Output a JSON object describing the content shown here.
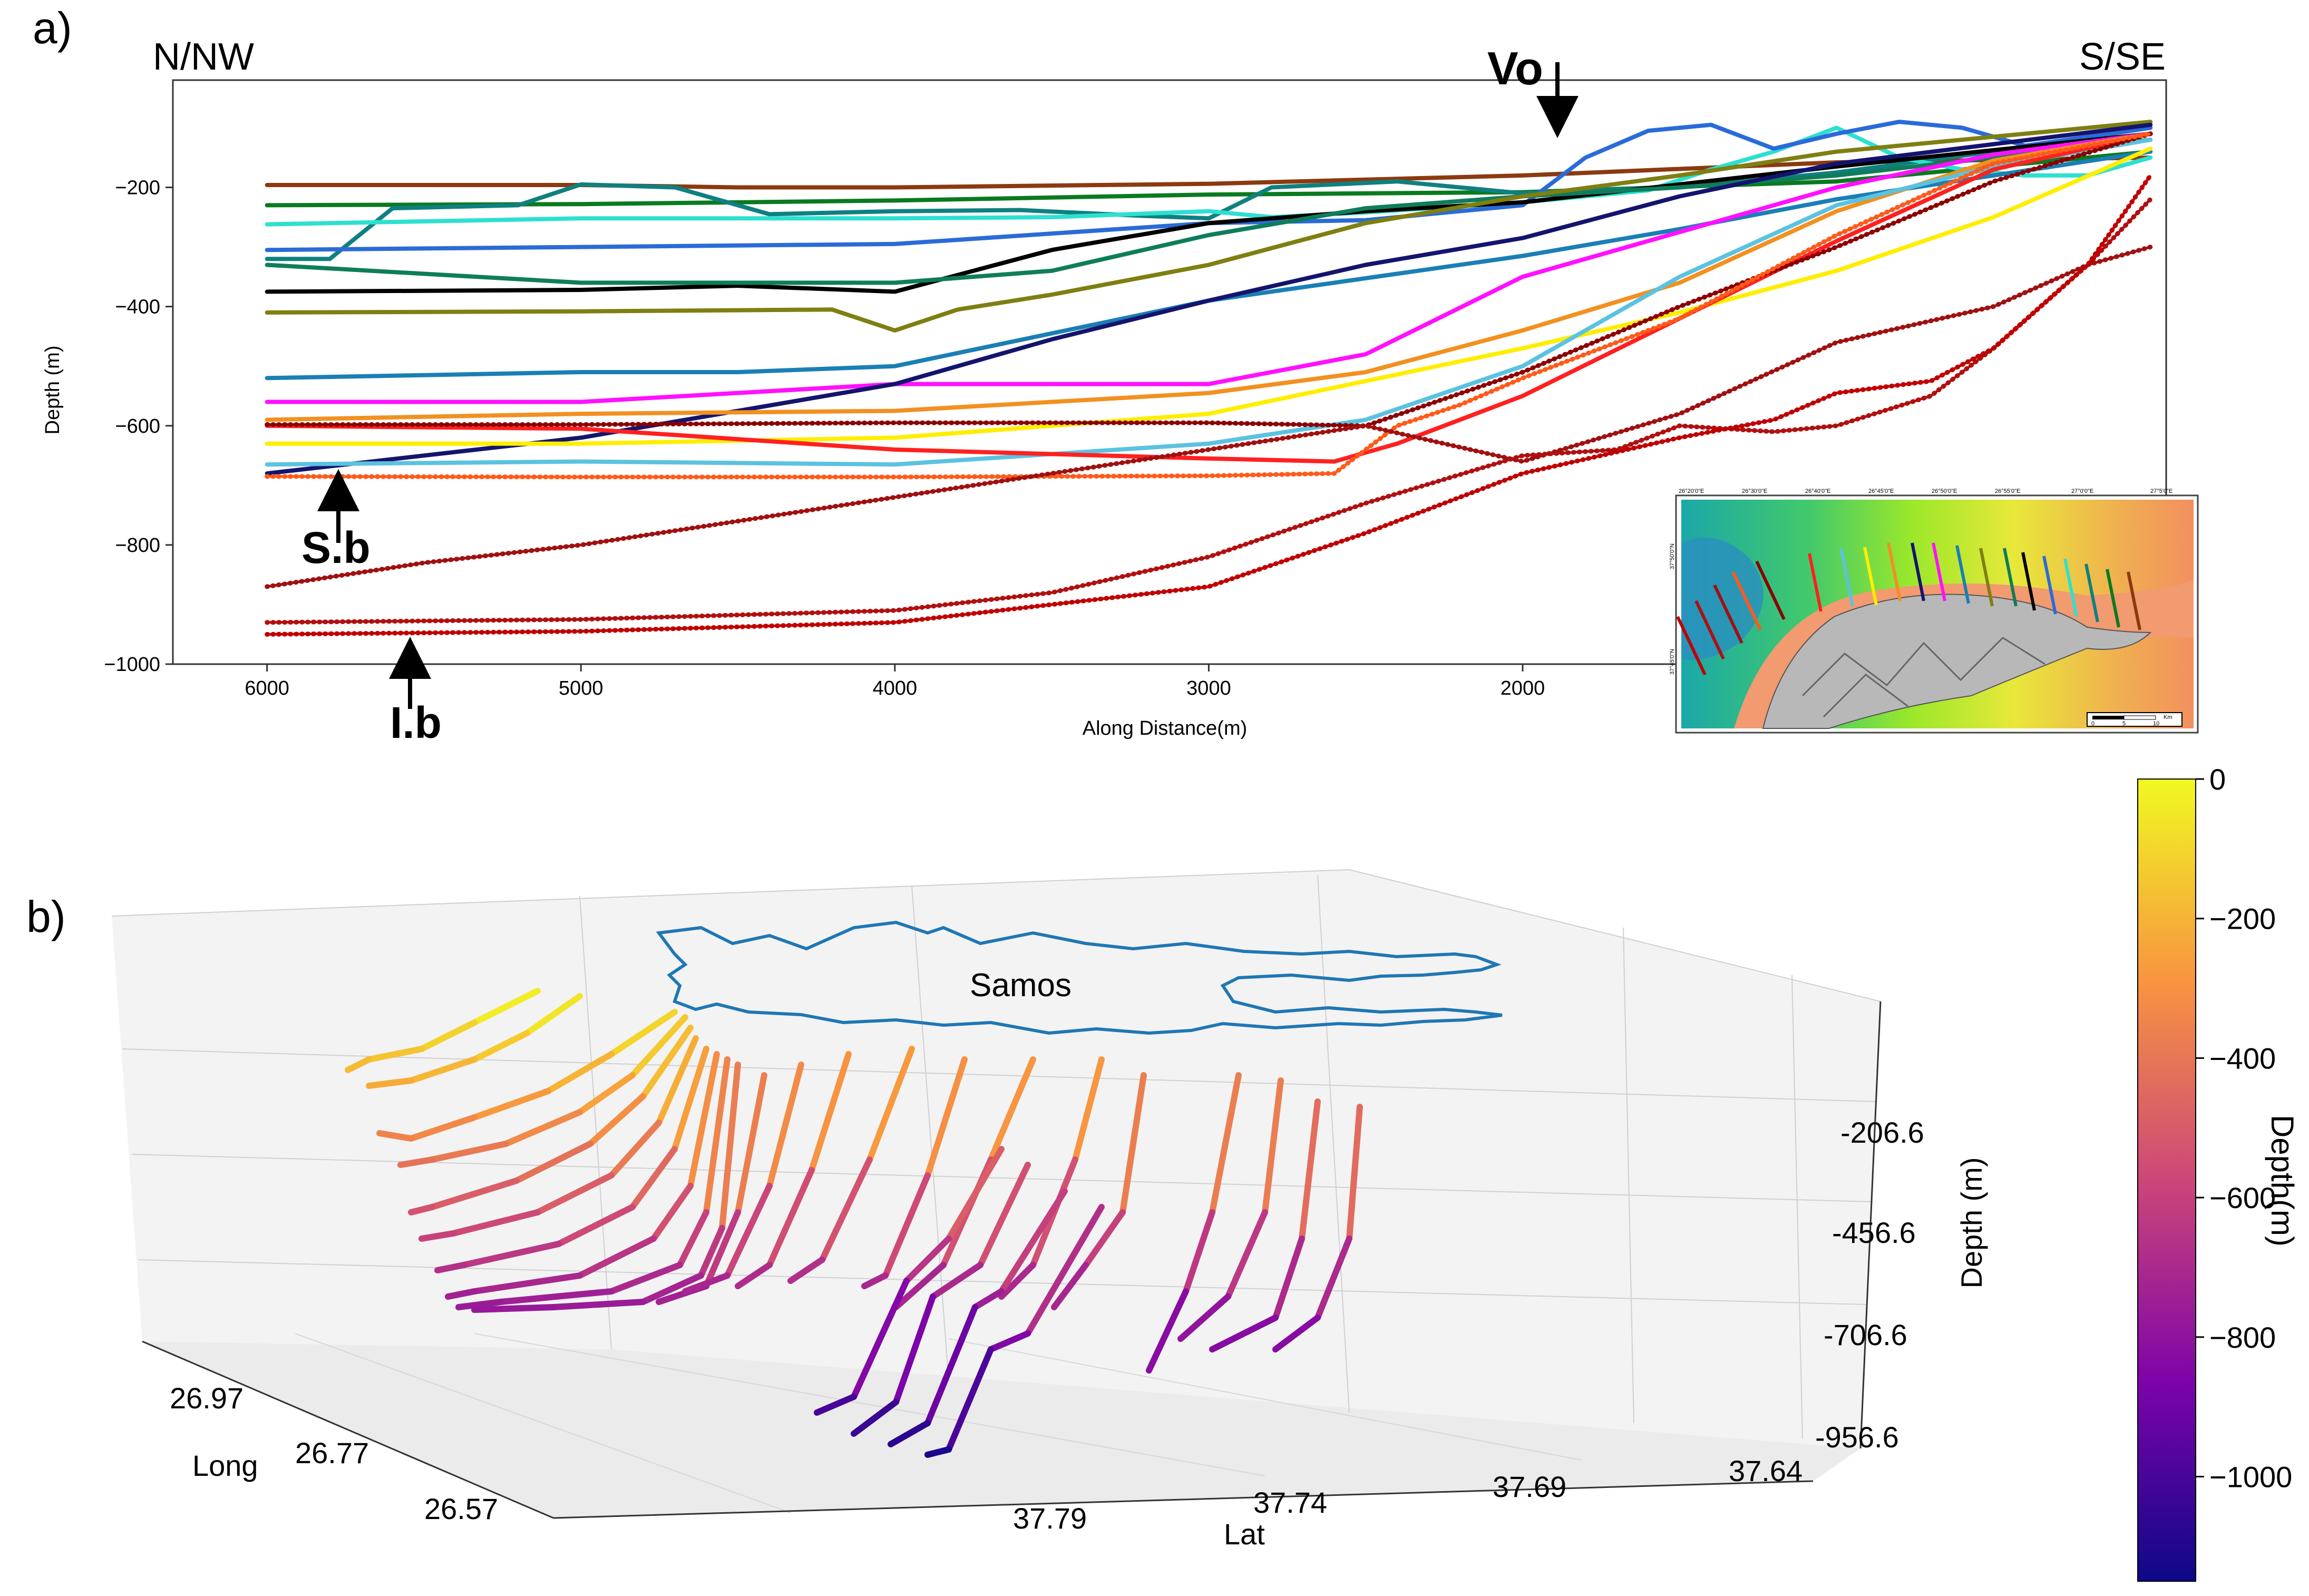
{
  "panel_a": {
    "panel_label": "a)",
    "left_tag": "N/NW",
    "right_tag": "S/SE",
    "ylabel": "Depth (m)",
    "xlabel": "Along Distance(m)",
    "annotations": {
      "vo": "Vo",
      "sb": "S.b",
      "ib": "I.b"
    },
    "inset": {
      "top_ticks": [
        "26°20'0\"E",
        "26°30'0\"E",
        "26°40'0\"E",
        "26°45'0\"E",
        "26°50'0\"E",
        "26°55'0\"E",
        "27°0'0\"E",
        "27°5'0\"E"
      ],
      "left_ticks": [
        "37°50'0\"N",
        "37°45'0\"N"
      ],
      "scale_label": "Km",
      "scale_ticks": [
        "0",
        "5",
        "10"
      ]
    }
  },
  "panel_b": {
    "panel_label": "b)",
    "island_label": "Samos",
    "long_label": "Long",
    "lat_label": "Lat",
    "depth_label": "Depth (m)",
    "long_ticks": [
      "26.97",
      "26.77",
      "26.57"
    ],
    "lat_ticks": [
      "37.79",
      "37.74",
      "37.69",
      "37.64"
    ],
    "depth_ticks": [
      "-206.6",
      "-456.6",
      "-706.6",
      "-956.6"
    ],
    "colorbar": {
      "label": "Depth(m)",
      "ticks": [
        "0",
        "-200",
        "-400",
        "-600",
        "-800",
        "-1000"
      ],
      "colors": [
        "#0d0887",
        "#7e03a8",
        "#cc4778",
        "#f89540",
        "#f0f921"
      ]
    }
  },
  "chart_data": [
    {
      "type": "line",
      "title": "",
      "xlabel": "Along Distance(m)",
      "ylabel": "Depth (m)",
      "xlim": [
        6300,
        -50
      ],
      "ylim": [
        -1000,
        -20
      ],
      "xticks": [
        6000,
        5000,
        4000,
        3000,
        2000
      ],
      "yticks": [
        -200,
        -400,
        -600,
        -800,
        -1000
      ],
      "series": [
        {
          "name": "profile-brown-top",
          "color": "#8b3a0f",
          "x": [
            6000,
            5000,
            4500,
            4000,
            3000,
            2000,
            1000,
            0
          ],
          "y": [
            -196,
            -196,
            -200,
            -200,
            -194,
            -180,
            -158,
            -150
          ]
        },
        {
          "name": "profile-green-1",
          "color": "#0a7a1f",
          "x": [
            6000,
            5000,
            4000,
            3000,
            2000,
            1000,
            0
          ],
          "y": [
            -230,
            -228,
            -222,
            -212,
            -208,
            -190,
            -140
          ]
        },
        {
          "name": "profile-teal",
          "color": "#0f8080",
          "x": [
            6000,
            5800,
            5600,
            5200,
            5000,
            4700,
            4400,
            4000,
            3600,
            3200,
            3000,
            2800,
            2400,
            2000,
            1800,
            1500,
            1000,
            500,
            0
          ],
          "y": [
            -320,
            -320,
            -235,
            -230,
            -195,
            -200,
            -245,
            -240,
            -238,
            -248,
            -252,
            -200,
            -190,
            -210,
            -205,
            -200,
            -175,
            -140,
            -100
          ]
        },
        {
          "name": "profile-cyan",
          "color": "#2de0d0",
          "x": [
            6000,
            5000,
            4000,
            3500,
            3000,
            2800,
            2500,
            2000,
            1600,
            1400,
            1200,
            1000,
            800,
            600,
            400,
            200,
            0
          ],
          "y": [
            -262,
            -252,
            -252,
            -250,
            -240,
            -250,
            -242,
            -225,
            -205,
            -170,
            -140,
            -100,
            -150,
            -170,
            -180,
            -180,
            -150
          ]
        },
        {
          "name": "profile-blue",
          "color": "#2a6bd8",
          "x": [
            6000,
            5000,
            4000,
            3000,
            2500,
            2200,
            2000,
            1800,
            1600,
            1400,
            1200,
            1000,
            800,
            600,
            400,
            200,
            0
          ],
          "y": [
            -305,
            -300,
            -295,
            -260,
            -255,
            -240,
            -230,
            -150,
            -105,
            -95,
            -135,
            -110,
            -90,
            -100,
            -130,
            -115,
            -100
          ]
        },
        {
          "name": "profile-black",
          "color": "#000000",
          "x": [
            6000,
            5000,
            4500,
            4000,
            3500,
            3000,
            2500,
            2000,
            1500,
            1000,
            0
          ],
          "y": [
            -375,
            -372,
            -365,
            -375,
            -305,
            -260,
            -240,
            -225,
            -195,
            -165,
            -110
          ]
        },
        {
          "name": "profile-green-2",
          "color": "#0f7d5a",
          "x": [
            6000,
            5000,
            4000,
            3500,
            3000,
            2500,
            2000,
            1500,
            1000,
            0
          ],
          "y": [
            -330,
            -360,
            -360,
            -340,
            -280,
            -235,
            -215,
            -200,
            -180,
            -120
          ]
        },
        {
          "name": "profile-olive",
          "color": "#7f7f12",
          "x": [
            6000,
            5000,
            4200,
            4000,
            3800,
            3500,
            3000,
            2500,
            2000,
            1500,
            1000,
            0
          ],
          "y": [
            -410,
            -408,
            -405,
            -440,
            -405,
            -380,
            -330,
            -260,
            -215,
            -180,
            -140,
            -90
          ]
        },
        {
          "name": "profile-steelblue",
          "color": "#1a7fb5",
          "x": [
            6000,
            5500,
            5000,
            4500,
            4000,
            3000,
            2000,
            1500,
            1000,
            0
          ],
          "y": [
            -520,
            -515,
            -510,
            -510,
            -500,
            -390,
            -315,
            -270,
            -220,
            -140
          ]
        },
        {
          "name": "profile-magenta",
          "color": "#ff10ff",
          "x": [
            6000,
            5000,
            4000,
            3000,
            2500,
            2000,
            1500,
            1000,
            500,
            0
          ],
          "y": [
            -560,
            -560,
            -530,
            -530,
            -480,
            -350,
            -275,
            -200,
            -145,
            -110
          ]
        },
        {
          "name": "profile-navy",
          "color": "#14146e",
          "x": [
            6000,
            5000,
            4000,
            3500,
            3000,
            2500,
            2000,
            1500,
            1000,
            0
          ],
          "y": [
            -680,
            -620,
            -530,
            -455,
            -390,
            -330,
            -285,
            -215,
            -160,
            -95
          ]
        },
        {
          "name": "profile-orange",
          "color": "#f29020",
          "x": [
            6000,
            5000,
            4000,
            3000,
            2500,
            2000,
            1500,
            1000,
            500,
            0
          ],
          "y": [
            -590,
            -580,
            -575,
            -545,
            -510,
            -440,
            -360,
            -240,
            -155,
            -110
          ]
        },
        {
          "name": "profile-yellow",
          "color": "#ffee00",
          "x": [
            6000,
            5000,
            4000,
            3000,
            2000,
            1500,
            1000,
            500,
            0
          ],
          "y": [
            -630,
            -630,
            -620,
            -580,
            -470,
            -410,
            -340,
            -250,
            -135
          ]
        },
        {
          "name": "profile-skyblue",
          "color": "#5bc2e0",
          "x": [
            6000,
            5000,
            4000,
            3000,
            2500,
            2000,
            1500,
            1000,
            500,
            0
          ],
          "y": [
            -665,
            -660,
            -665,
            -630,
            -590,
            -500,
            -350,
            -230,
            -165,
            -120
          ]
        },
        {
          "name": "profile-red",
          "color": "#ff2020",
          "x": [
            6000,
            5000,
            4000,
            3000,
            2600,
            2400,
            2000,
            1500,
            1000,
            500,
            0
          ],
          "y": [
            -600,
            -605,
            -640,
            -655,
            -660,
            -630,
            -550,
            -420,
            -290,
            -170,
            -110
          ]
        },
        {
          "name": "profile-darkred-1",
          "color": "#8b0000",
          "x": [
            6000,
            5000,
            4000,
            3000,
            2500,
            2000,
            1500,
            1000,
            500,
            0
          ],
          "y": [
            -598,
            -598,
            -595,
            -595,
            -600,
            -510,
            -400,
            -300,
            -190,
            -110
          ]
        },
        {
          "name": "profile-orangered",
          "color": "#ff5a1a",
          "x": [
            6000,
            5000,
            4000,
            3000,
            2600,
            2400,
            2200,
            2000,
            1500,
            1000,
            500,
            0
          ],
          "y": [
            -685,
            -686,
            -686,
            -684,
            -680,
            -600,
            -565,
            -520,
            -420,
            -280,
            -160,
            -110
          ]
        },
        {
          "name": "profile-darkred-2",
          "color": "#a01010",
          "x": [
            6000,
            5500,
            5000,
            4500,
            4000,
            3500,
            3000,
            2500,
            2000,
            1500,
            1000,
            500,
            200,
            0
          ],
          "y": [
            -870,
            -830,
            -800,
            -760,
            -720,
            -680,
            -640,
            -600,
            -660,
            -580,
            -460,
            -400,
            -330,
            -300
          ]
        },
        {
          "name": "profile-darkred-3",
          "color": "#b01010",
          "x": [
            6000,
            5000,
            4000,
            3500,
            3000,
            2500,
            2000,
            1700,
            1500,
            1200,
            1000,
            700,
            500,
            200,
            0
          ],
          "y": [
            -930,
            -925,
            -910,
            -880,
            -820,
            -730,
            -650,
            -640,
            -600,
            -610,
            -600,
            -550,
            -470,
            -330,
            -220
          ]
        },
        {
          "name": "profile-darkred-4",
          "color": "#c00000",
          "x": [
            6000,
            5000,
            4000,
            3000,
            2500,
            2000,
            1500,
            1200,
            1000,
            700,
            500,
            200,
            0
          ],
          "y": [
            -950,
            -945,
            -930,
            -870,
            -780,
            -680,
            -620,
            -590,
            -545,
            -525,
            -470,
            -330,
            -180
          ]
        }
      ]
    },
    {
      "type": "scatter",
      "title": "",
      "xlabel": "Long",
      "ylabel": "Lat",
      "zlabel": "Depth (m)",
      "long_ticks": [
        26.97,
        26.77,
        26.57
      ],
      "lat_ticks": [
        37.79,
        37.74,
        37.69,
        37.64
      ],
      "depth_ticks": [
        -206.6,
        -456.6,
        -706.6,
        -956.6
      ],
      "colorbar_range": [
        -1150,
        0
      ],
      "note": "3D view of depth profiles colored by depth off the NW coast of Samos"
    }
  ]
}
